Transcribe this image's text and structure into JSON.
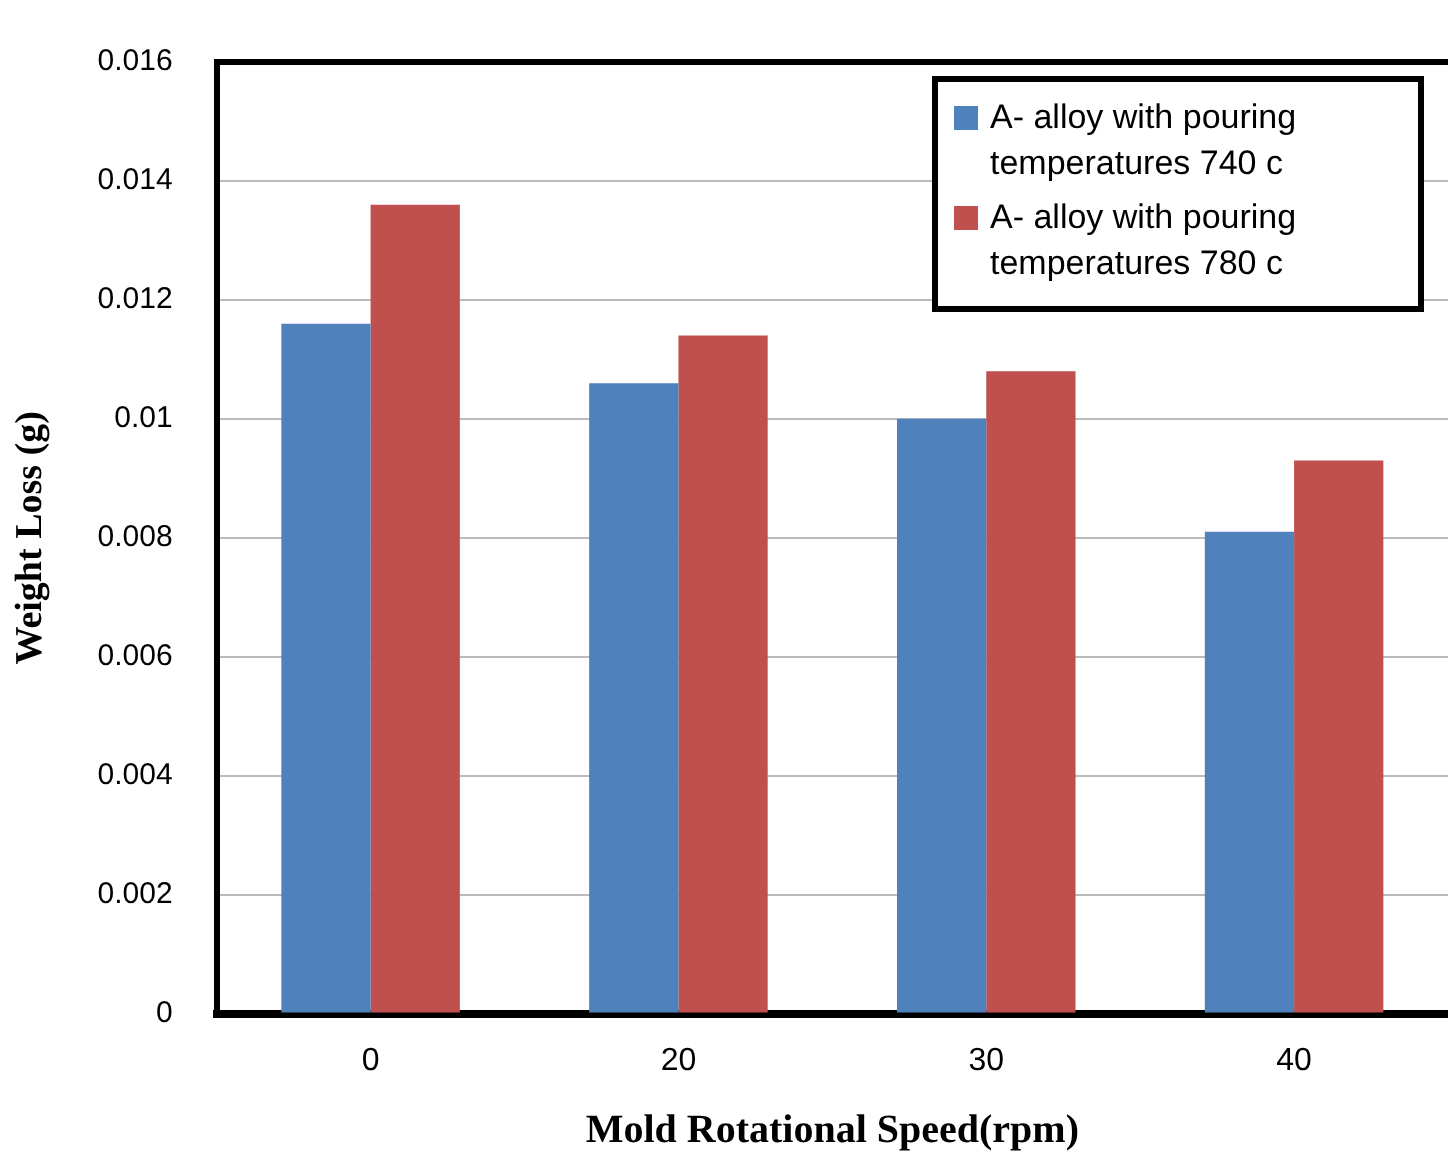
{
  "chart_data": {
    "type": "bar",
    "xlabel": "Mold Rotational Speed(rpm)",
    "ylabel": "Weight Loss (g)",
    "categories": [
      "0",
      "20",
      "30",
      "40"
    ],
    "series": [
      {
        "name": "A- alloy with pouring temperatures 740 c",
        "color": "#4f81bd",
        "values": [
          0.0116,
          0.0106,
          0.01,
          0.0081
        ]
      },
      {
        "name": "A- alloy with pouring temperatures 780 c",
        "color": "#c0504d",
        "values": [
          0.0136,
          0.0114,
          0.0108,
          0.0093
        ]
      }
    ],
    "ylim": [
      0,
      0.016
    ],
    "yticks": [
      0,
      0.002,
      0.004,
      0.006,
      0.008,
      0.01,
      0.012,
      0.014,
      0.016
    ],
    "grid": "y",
    "legend": "top right"
  }
}
